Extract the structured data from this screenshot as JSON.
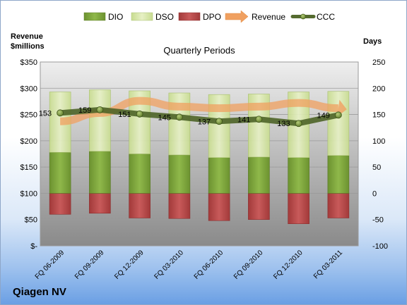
{
  "company": "Qiagen NV",
  "chart_data": {
    "type": "bar",
    "title": "Quarterly Periods",
    "left_axis_title_line1": "Revenue",
    "left_axis_title_line2": "$millions",
    "right_axis_title": "Days",
    "left_ylim": [
      0,
      350
    ],
    "right_ylim": [
      -100,
      250
    ],
    "left_ticks": [
      "$350",
      "$300",
      "$250",
      "$200",
      "$150",
      "$100",
      "$50",
      "$-"
    ],
    "left_tick_values": [
      350,
      300,
      250,
      200,
      150,
      100,
      50,
      0
    ],
    "right_ticks": [
      "250",
      "200",
      "150",
      "100",
      "50",
      "0",
      "-50",
      "-100"
    ],
    "right_tick_values": [
      250,
      200,
      150,
      100,
      50,
      0,
      -50,
      -100
    ],
    "categories": [
      "FQ 06-2009",
      "FQ 09-2009",
      "FQ 12-2009",
      "FQ 03-2010",
      "FQ 06-2010",
      "FQ 09-2010",
      "FQ 12-2010",
      "FQ 03-2011"
    ],
    "legend": [
      {
        "name": "DIO",
        "kind": "bar",
        "color": "#7aa23a"
      },
      {
        "name": "DSO",
        "kind": "bar",
        "color": "#d6e6a6"
      },
      {
        "name": "DPO",
        "kind": "bar",
        "color": "#b84a4a"
      },
      {
        "name": "Revenue",
        "kind": "arrow",
        "color": "#f0a060"
      },
      {
        "name": "CCC",
        "kind": "line",
        "color": "#556b2f"
      }
    ],
    "series": [
      {
        "name": "DIO",
        "axis": "right",
        "values": [
          78,
          80,
          75,
          73,
          68,
          69,
          68,
          72
        ]
      },
      {
        "name": "DSO",
        "axis": "right",
        "values": [
          115,
          117,
          120,
          118,
          120,
          120,
          125,
          122
        ]
      },
      {
        "name": "DPO",
        "axis": "right",
        "values": [
          -40,
          -38,
          -47,
          -48,
          -52,
          -50,
          -58,
          -47
        ]
      },
      {
        "name": "Revenue",
        "axis": "left",
        "values": [
          237,
          253,
          276,
          265,
          262,
          265,
          272,
          262
        ]
      },
      {
        "name": "CCC",
        "axis": "right",
        "values": [
          153,
          159,
          151,
          145,
          137,
          141,
          133,
          149
        ],
        "labels": [
          "153",
          "159",
          "151",
          "145",
          "137",
          "141",
          "133",
          "149"
        ]
      }
    ]
  }
}
